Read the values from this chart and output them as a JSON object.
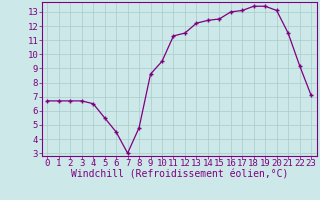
{
  "x": [
    0,
    1,
    2,
    3,
    4,
    5,
    6,
    7,
    8,
    9,
    10,
    11,
    12,
    13,
    14,
    15,
    16,
    17,
    18,
    19,
    20,
    21,
    22,
    23
  ],
  "y": [
    6.7,
    6.7,
    6.7,
    6.7,
    6.5,
    5.5,
    4.5,
    3.0,
    4.8,
    8.6,
    9.5,
    11.3,
    11.5,
    12.2,
    12.4,
    12.5,
    13.0,
    13.1,
    13.4,
    13.4,
    13.1,
    11.5,
    9.2,
    7.1
  ],
  "line_color": "#800080",
  "marker": "+",
  "bg_color": "#cce8e8",
  "grid_color": "#aacccc",
  "xlabel": "Windchill (Refroidissement éolien,°C)",
  "xlim_min": -0.5,
  "xlim_max": 23.5,
  "ylim_min": 2.8,
  "ylim_max": 13.7,
  "yticks": [
    3,
    4,
    5,
    6,
    7,
    8,
    9,
    10,
    11,
    12,
    13
  ],
  "xticks": [
    0,
    1,
    2,
    3,
    4,
    5,
    6,
    7,
    8,
    9,
    10,
    11,
    12,
    13,
    14,
    15,
    16,
    17,
    18,
    19,
    20,
    21,
    22,
    23
  ],
  "tick_color": "#800080",
  "axis_color": "#800080",
  "font_size_xlabel": 7,
  "font_size_tick": 6.5
}
